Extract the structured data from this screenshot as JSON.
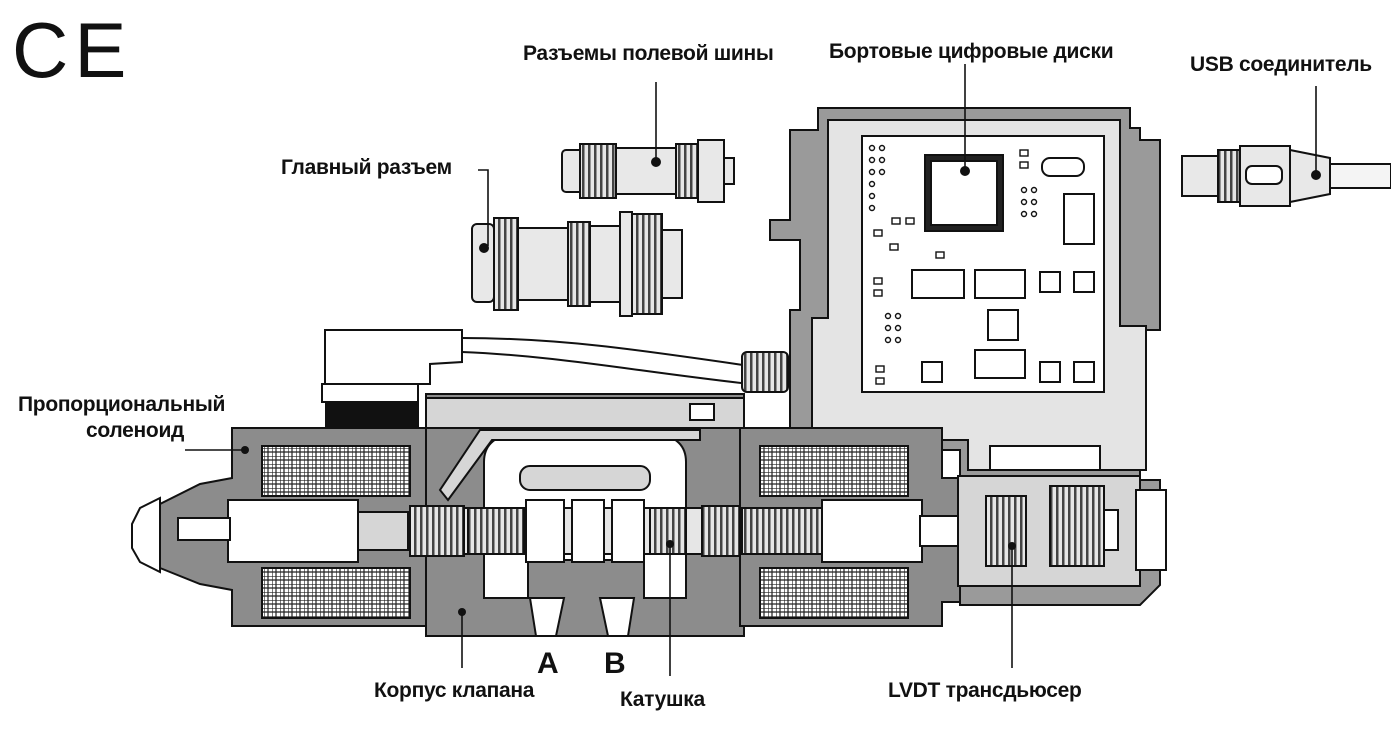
{
  "mark": {
    "text": "CE"
  },
  "labels": {
    "fieldbus": "Разъемы полевой шины",
    "onboard": "Бортовые цифровые диски",
    "usb": "USB соединитель",
    "main_connector": "Главный разъем",
    "solenoid_line1": "Пропорциональный",
    "solenoid_line2": "соленоид",
    "valve_body": "Корпус клапана",
    "spool": "Катушка",
    "lvdt": "LVDT трансдьюсер"
  },
  "ports": {
    "a": "A",
    "b": "B"
  },
  "colors": {
    "body": "#8c8c8c",
    "light": "#d6d6d6",
    "dark": "#3a3a3a",
    "line": "#111111"
  }
}
